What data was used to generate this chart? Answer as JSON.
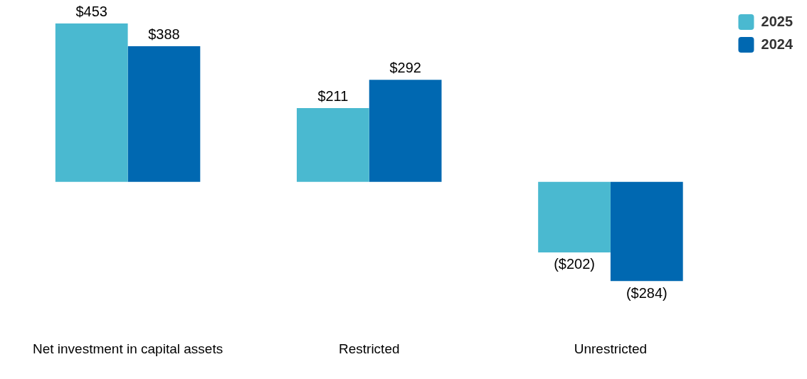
{
  "chart_data": {
    "type": "bar",
    "categories": [
      "Net investment in capital assets",
      "Restricted",
      "Unrestricted"
    ],
    "series": [
      {
        "name": "2025",
        "color": "#4ab9d0",
        "values": [
          453,
          211,
          -202
        ],
        "value_labels": [
          "$453",
          "$211",
          "($202)"
        ]
      },
      {
        "name": "2024",
        "color": "#0068b1",
        "values": [
          388,
          292,
          -284
        ],
        "value_labels": [
          "$388",
          "$292",
          "($284)"
        ]
      }
    ],
    "legend": "top right"
  }
}
